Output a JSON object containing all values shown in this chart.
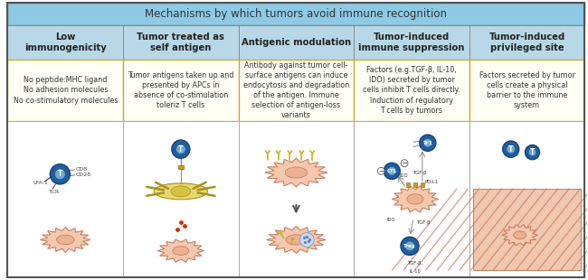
{
  "title": "Mechanisms by which tumors avoid immune recognition",
  "title_bg": "#87CEEB",
  "header_bg": "#B8D8E8",
  "cell_bg": "#FFFFFF",
  "desc_border": "#C8A830",
  "border_color": "#AAAAAA",
  "outer_border": "#888888",
  "columns": [
    "Low\nimmunogenicity",
    "Tumor treated as\nself antigen",
    "Antigenic modulation",
    "Tumor-induced\nimmune suppression",
    "Tumor-induced\nprivileged site"
  ],
  "descriptions": [
    "No peptide:MHC ligand\nNo adhesion molecules\nNo co-stimulatory molecules",
    "Tumor antigens taken up and\npresented by APCs in\nabsence of co-stimulation\ntoleriz T cells",
    "Antibody against tumor cell-\nsurface antigens can induce\nendocytosis and degradation\nof the antigen. Immune\nselection of antigen-loss\nvariants",
    "Factors (e.g.TGF-β, IL-10,\nIDO) secreted by tumor\ncells inhibit T cells directly.\nInduction of regulatory\nT cells by tumors",
    "Factors secreted by tumor\ncells create a physical\nbarrier to the immune\nsystem"
  ],
  "title_fontsize": 8.5,
  "header_fontsize": 7.2,
  "desc_fontsize": 5.8
}
